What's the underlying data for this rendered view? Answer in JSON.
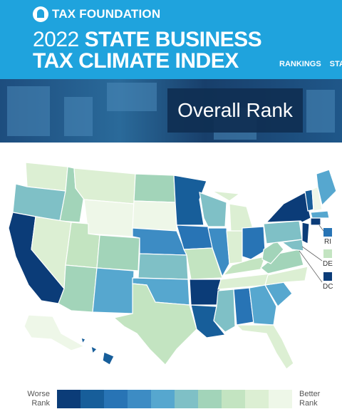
{
  "header": {
    "org": "TAX FOUNDATION",
    "title_year": "2022",
    "title_line1": "STATE BUSINESS",
    "title_line2": "TAX CLIMATE INDEX",
    "nav": [
      "RANKINGS",
      "STA"
    ]
  },
  "banner": {
    "overlay_title": "Overall Rank"
  },
  "colors": {
    "scale": [
      "#0b3c78",
      "#175e9a",
      "#2874b5",
      "#3d8cc4",
      "#56a7cf",
      "#7fc0c6",
      "#a2d4b9",
      "#c3e4c1",
      "#dcefd3",
      "#eef7e8"
    ],
    "header_bg": "#1fa3dd"
  },
  "map": {
    "small_states": [
      {
        "abbr": "RI",
        "rank_level": 3
      },
      {
        "abbr": "DE",
        "rank_level": 8
      },
      {
        "abbr": "DC",
        "rank_level": 0
      }
    ]
  },
  "legend": {
    "worse": "Worse Rank",
    "better": "Better Rank"
  }
}
